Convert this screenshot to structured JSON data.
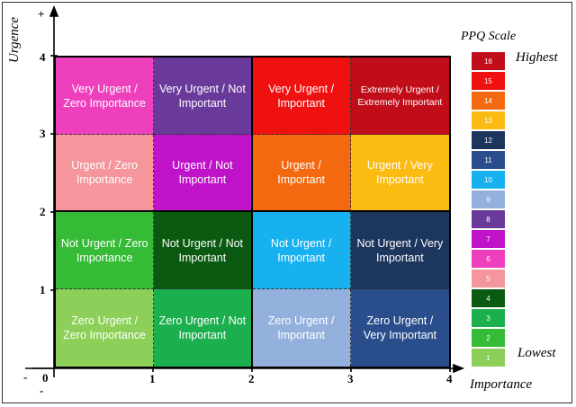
{
  "axes": {
    "y_label": "Urgence",
    "x_label": "Importance",
    "y_plus": "+",
    "y_minus": "-",
    "x_minus": "-",
    "origin": "0",
    "x_ticks": [
      "1",
      "2",
      "3",
      "4"
    ],
    "y_ticks": [
      "1",
      "2",
      "3",
      "4"
    ]
  },
  "grid": {
    "rows": [
      [
        {
          "label": "Very Urgent / Zero Importance",
          "color": "#ee3fbd"
        },
        {
          "label": "Very Urgent / Not Important",
          "color": "#6a3a9a"
        },
        {
          "label": "Very Urgent / Important",
          "color": "#ef1010"
        },
        {
          "label": "Extremely Urgent / Extremely Important",
          "color": "#c10d1a"
        }
      ],
      [
        {
          "label": "Urgent / Zero Importance",
          "color": "#f4969c"
        },
        {
          "label": "Urgent / Not Important",
          "color": "#c012c8"
        },
        {
          "label": "Urgent / Important",
          "color": "#f46910"
        },
        {
          "label": "Urgent / Very Important",
          "color": "#fbbb12"
        }
      ],
      [
        {
          "label": "Not Urgent / Zero Importance",
          "color": "#36bb36"
        },
        {
          "label": "Not Urgent / Not Important",
          "color": "#0b5a12"
        },
        {
          "label": "Not Urgent / Important",
          "color": "#18b1ef"
        },
        {
          "label": "Not Urgent / Very Important",
          "color": "#1c365d"
        }
      ],
      [
        {
          "label": "Zero Urgent / Zero Importance",
          "color": "#8ccf59"
        },
        {
          "label": "Zero Urgent / Not Important",
          "color": "#1bb04d"
        },
        {
          "label": "Zero Urgent / Important",
          "color": "#94b1dd"
        },
        {
          "label": "Zero Urgent / Very Important",
          "color": "#2a4e8c"
        }
      ]
    ]
  },
  "scale": {
    "title": "PPQ Scale",
    "highest": "Highest",
    "lowest": "Lowest",
    "levels": [
      {
        "value": "16",
        "color": "#c10d1a"
      },
      {
        "value": "15",
        "color": "#ef1010"
      },
      {
        "value": "14",
        "color": "#f46910"
      },
      {
        "value": "13",
        "color": "#fbbb12"
      },
      {
        "value": "12",
        "color": "#1c365d"
      },
      {
        "value": "11",
        "color": "#2a4e8c"
      },
      {
        "value": "10",
        "color": "#18b1ef"
      },
      {
        "value": "9",
        "color": "#94b1dd"
      },
      {
        "value": "8",
        "color": "#6a3a9a"
      },
      {
        "value": "7",
        "color": "#c012c8"
      },
      {
        "value": "6",
        "color": "#ee3fbd"
      },
      {
        "value": "5",
        "color": "#f4969c"
      },
      {
        "value": "4",
        "color": "#0b5a12"
      },
      {
        "value": "3",
        "color": "#1bb04d"
      },
      {
        "value": "2",
        "color": "#36bb36"
      },
      {
        "value": "1",
        "color": "#8ccf59"
      }
    ]
  }
}
